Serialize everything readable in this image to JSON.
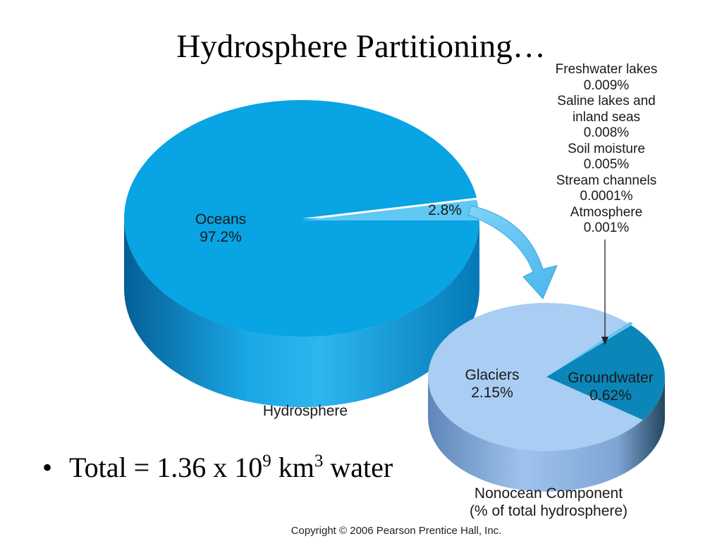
{
  "slide": {
    "title": "Hydrosphere Partitioning…",
    "bullet": {
      "prefix": "Total = 1.36 x 10",
      "exponent": "9",
      "unit": " km",
      "unit_exponent": "3",
      "suffix": " water"
    },
    "copyright": "Copyright © 2006 Pearson Prentice Hall, Inc."
  },
  "chart_data": [
    {
      "type": "pie",
      "title": "Hydrosphere",
      "unit": "%",
      "slices": [
        {
          "label": "Oceans",
          "value": 97.2,
          "value_label": "97.2%",
          "color": "#08a4e3"
        },
        {
          "label": "",
          "value": 2.8,
          "value_label": "2.8%",
          "color": "#5fc8f4"
        }
      ]
    },
    {
      "type": "pie",
      "title": "Nonocean Component\n(% of total hydrosphere)",
      "title_lines": [
        "Nonocean Component",
        "(% of total hydrosphere)"
      ],
      "unit": "%",
      "slices": [
        {
          "label": "Glaciers",
          "value": 2.15,
          "value_label": "2.15%",
          "color": "#a9cdf3"
        },
        {
          "label": "Groundwater",
          "value": 0.62,
          "value_label": "0.62%",
          "color": "#0a86b9"
        },
        {
          "label": "Freshwater lakes",
          "value": 0.009,
          "value_label": "0.009%"
        },
        {
          "label": "Saline lakes and inland seas",
          "value": 0.008,
          "value_label": "0.008%"
        },
        {
          "label": "Soil moisture",
          "value": 0.005,
          "value_label": "0.005%"
        },
        {
          "label": "Stream channels",
          "value": 0.0001,
          "value_label": "0.0001%"
        },
        {
          "label": "Atmosphere",
          "value": 0.001,
          "value_label": "0.001%"
        }
      ],
      "small_components_lines": [
        "Freshwater lakes",
        "0.009%",
        "Saline lakes and",
        "inland seas",
        "0.008%",
        "Soil moisture",
        "0.005%",
        "Stream channels",
        "0.0001%",
        "Atmosphere",
        "0.001%"
      ],
      "small_components_color": "#5cc6f3"
    }
  ]
}
